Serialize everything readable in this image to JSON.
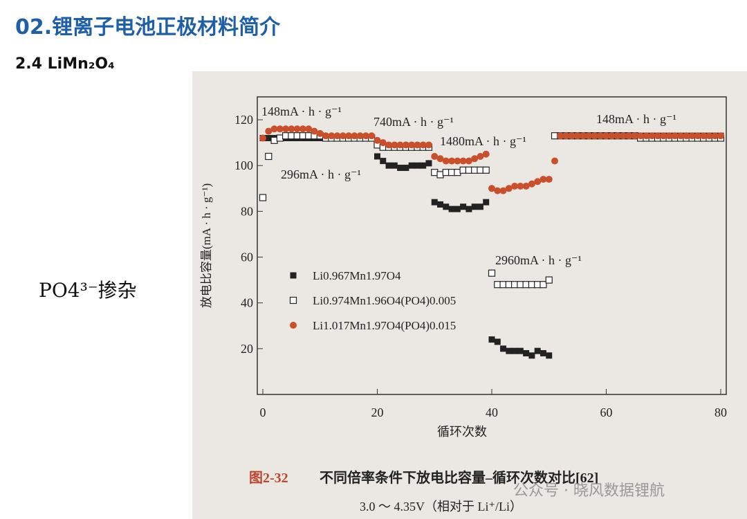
{
  "slide": {
    "title": "02.锂离子电池正极材料简介",
    "subtitle": "2.4 LiMn₂O₄",
    "side_label": "PO4³⁻掺杂",
    "caption_label": "图2-32",
    "caption_text": "不同倍率条件下放电比容量–循环次数对比[62]",
    "caption_note": "3.0 ～ 4.35V（相对于 Li⁺/Li）",
    "watermark": "公众号 · 晓风数据锂航"
  },
  "chart_data": {
    "type": "scatter",
    "x_label": "循环次数",
    "y_label": "放电比容量(mA · h · g⁻¹)",
    "xlim": [
      0,
      80
    ],
    "ylim": [
      0,
      130
    ],
    "xticks": [
      0,
      20,
      40,
      60,
      80
    ],
    "yticks": [
      20,
      40,
      60,
      80,
      100,
      120
    ],
    "annotations": [
      "148mA · h · g⁻¹",
      "296mA · h · g⁻¹",
      "740mA · h · g⁻¹",
      "1480mA · h · g⁻¹",
      "2960mA · h · g⁻¹",
      "148mA · h · g⁻¹"
    ],
    "x": [
      0,
      1,
      2,
      3,
      4,
      5,
      6,
      7,
      8,
      9,
      10,
      11,
      12,
      13,
      14,
      15,
      16,
      17,
      18,
      19,
      20,
      21,
      22,
      23,
      24,
      25,
      26,
      27,
      28,
      29,
      30,
      31,
      32,
      33,
      34,
      35,
      36,
      37,
      38,
      39,
      40,
      41,
      42,
      43,
      44,
      45,
      46,
      47,
      48,
      49,
      50,
      51,
      52,
      53,
      54,
      55,
      56,
      57,
      58,
      59,
      60,
      61,
      62,
      63,
      64,
      65,
      66,
      67,
      68,
      69,
      70,
      71,
      72,
      73,
      74,
      75,
      76,
      77,
      78,
      79,
      80
    ],
    "series": [
      {
        "name": "Li0.967Mn1.97O4",
        "marker": "filled-square",
        "color": "#222222",
        "values": [
          112,
          112,
          112,
          112,
          112,
          112,
          112,
          112,
          112,
          112,
          112,
          112,
          112,
          112,
          112,
          112,
          112,
          112,
          112,
          112,
          104,
          102,
          100,
          100,
          99,
          99,
          100,
          100,
          100,
          101,
          84,
          83,
          82,
          81,
          81,
          82,
          81,
          82,
          82,
          84,
          24,
          23,
          20,
          19,
          19,
          19,
          18,
          17,
          19,
          18,
          17,
          113,
          113,
          113,
          113,
          113,
          113,
          113,
          113,
          113,
          113,
          113,
          113,
          113,
          113,
          113,
          113,
          113,
          113,
          113,
          113,
          113,
          113,
          113,
          113,
          113,
          113,
          113,
          113,
          113,
          113
        ]
      },
      {
        "name": "Li0.974Mn1.96O4(PO4)0.005",
        "marker": "open-square",
        "color": "#222222",
        "values": [
          86,
          104,
          111,
          112,
          113,
          113,
          113,
          113,
          113,
          113,
          113,
          112,
          112,
          112,
          112,
          112,
          112,
          112,
          112,
          112,
          109,
          108,
          108,
          108,
          108,
          108,
          108,
          108,
          108,
          108,
          97,
          96,
          97,
          97,
          97,
          98,
          98,
          98,
          98,
          98,
          53,
          48,
          48,
          48,
          48,
          48,
          48,
          48,
          48,
          48,
          50,
          113,
          113,
          113,
          113,
          113,
          113,
          113,
          113,
          113,
          113,
          113,
          113,
          113,
          113,
          113,
          112,
          112,
          112,
          112,
          112,
          112,
          112,
          112,
          112,
          112,
          112,
          112,
          112,
          112,
          112
        ]
      },
      {
        "name": "Li1.017Mn1.97O4(PO4)0.015",
        "marker": "circle",
        "color": "#c9502a",
        "values": [
          112,
          115,
          116,
          116,
          116,
          116,
          116,
          116,
          116,
          115,
          114,
          113,
          113,
          113,
          113,
          113,
          113,
          113,
          113,
          113,
          111,
          110,
          109,
          109,
          109,
          109,
          109,
          109,
          109,
          109,
          104,
          103,
          102,
          102,
          102,
          102,
          102,
          103,
          104,
          105,
          90,
          89,
          89,
          90,
          91,
          91,
          91,
          92,
          93,
          94,
          94,
          102,
          113,
          113,
          113,
          113,
          113,
          113,
          113,
          113,
          113,
          113,
          113,
          113,
          113,
          113,
          113,
          113,
          113,
          113,
          113,
          113,
          113,
          113,
          113,
          113,
          113,
          113,
          113,
          113,
          113
        ]
      }
    ]
  }
}
